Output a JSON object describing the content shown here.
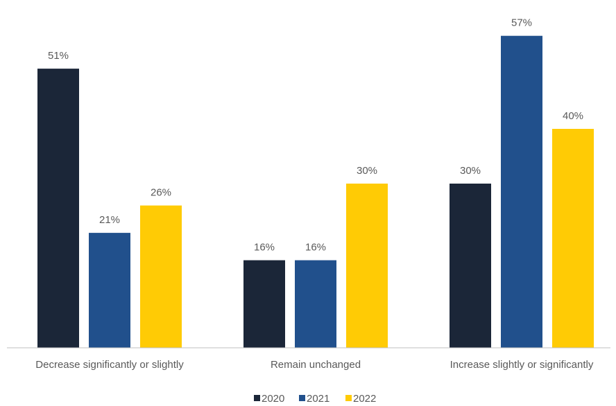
{
  "chart_data": {
    "type": "bar",
    "categories": [
      "Decrease significantly or slightly",
      "Remain unchanged",
      "Increase slightly or significantly"
    ],
    "series": [
      {
        "name": "2020",
        "color": "#1b2638",
        "values": [
          51,
          16,
          30
        ],
        "labels": [
          "51%",
          "16%",
          "30%"
        ]
      },
      {
        "name": "2021",
        "color": "#21508c",
        "values": [
          21,
          16,
          57
        ],
        "labels": [
          "21%",
          "16%",
          "57%"
        ]
      },
      {
        "name": "2022",
        "color": "#ffcb05",
        "values": [
          26,
          30,
          40
        ],
        "labels": [
          "26%",
          "30%",
          "40%"
        ]
      }
    ],
    "ylim": [
      0,
      64
    ],
    "grid": false,
    "legend": "bottom-center",
    "axis_color": "#bfbfbf"
  }
}
